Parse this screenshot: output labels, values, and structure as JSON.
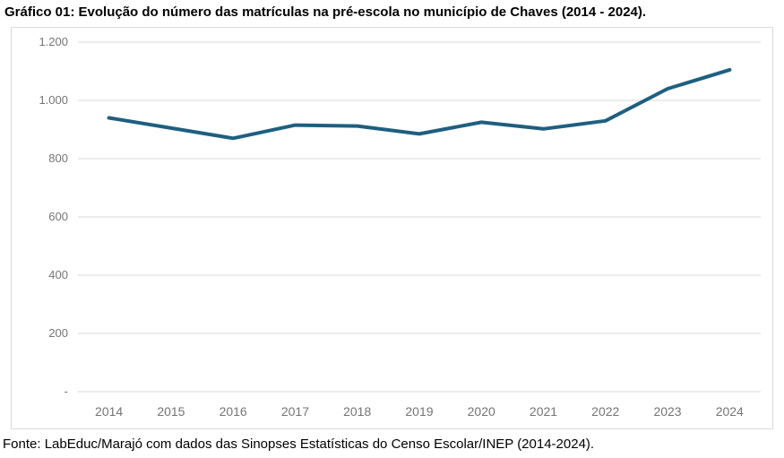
{
  "title": "Gráfico 01: Evolução do número das matrículas na pré-escola no município de Chaves (2014 - 2024).",
  "source": "Fonte: LabEduc/Marajó com dados das Sinopses Estatísticas do Censo Escolar/INEP (2014-2024).",
  "colors": {
    "line": "#1e5f80",
    "grid": "#d9d9d9",
    "frame": "#d9d9d9",
    "tick_text": "#757575",
    "text": "#000000"
  },
  "chart_data": {
    "type": "line",
    "title": "Gráfico 01: Evolução do número das matrículas na pré-escola no município de Chaves (2014 - 2024).",
    "categories": [
      "2014",
      "2015",
      "2016",
      "2017",
      "2018",
      "2019",
      "2020",
      "2021",
      "2022",
      "2023",
      "2024"
    ],
    "values": [
      940,
      905,
      870,
      915,
      912,
      885,
      925,
      902,
      930,
      1040,
      1105
    ],
    "xlabel": "",
    "ylabel": "",
    "ylim": [
      0,
      1200
    ],
    "ytick_step": 200,
    "ytick_labels": [
      "1.200",
      "1.000",
      "800",
      "600",
      "400",
      "200",
      "-"
    ],
    "grid": true,
    "legend": false
  }
}
